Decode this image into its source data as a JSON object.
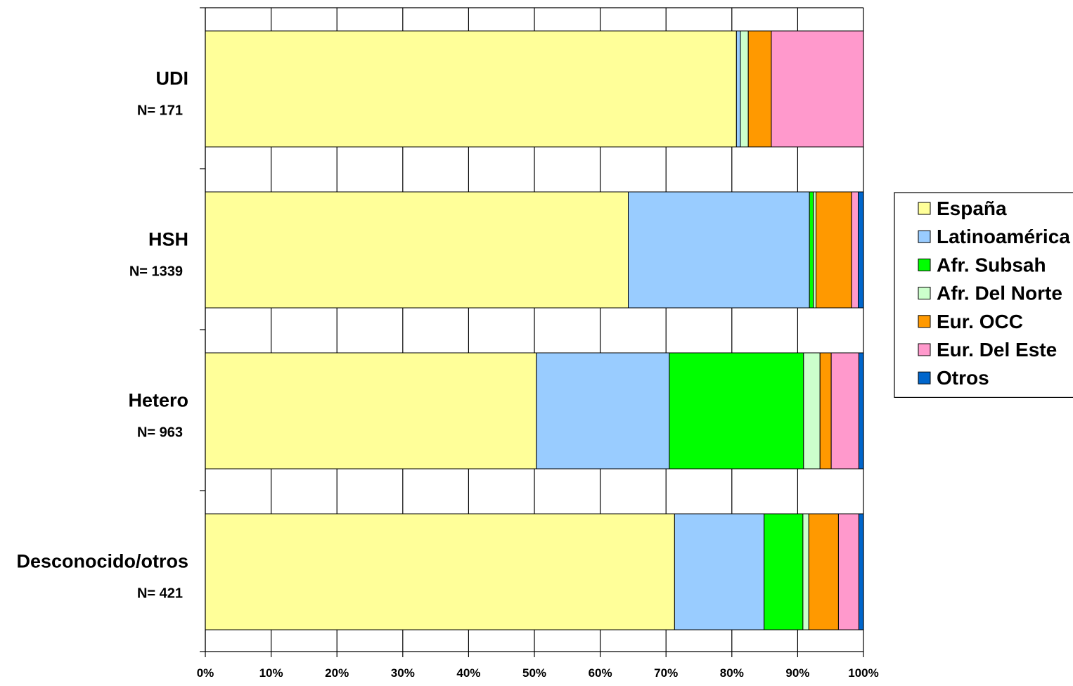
{
  "chart_data": {
    "type": "bar",
    "orientation": "horizontal",
    "stacked": "percent",
    "categories": [
      "UDI",
      "HSH",
      "Hetero",
      "Desconocido/otros"
    ],
    "category_counts": [
      "N= 171",
      "N= 1339",
      "N= 963",
      "N= 421"
    ],
    "series": [
      {
        "name": "España",
        "color": "#FFFF99",
        "values": [
          80.7,
          64.2,
          50.3,
          71.3
        ]
      },
      {
        "name": "Latinoamérica",
        "color": "#99CCFF",
        "values": [
          0.6,
          27.5,
          20.2,
          13.6
        ]
      },
      {
        "name": "Afr. Subsah",
        "color": "#00FF00",
        "values": [
          0.0,
          0.6,
          20.4,
          5.9
        ]
      },
      {
        "name": "Afr. Del Norte",
        "color": "#CCFFCC",
        "values": [
          1.2,
          0.4,
          2.5,
          0.9
        ]
      },
      {
        "name": "Eur. OCC",
        "color": "#FF9900",
        "values": [
          3.5,
          5.4,
          1.7,
          4.5
        ]
      },
      {
        "name": "Eur. Del Este",
        "color": "#FF99CC",
        "values": [
          14.0,
          1.0,
          4.2,
          3.1
        ]
      },
      {
        "name": "Otros",
        "color": "#0066CC",
        "values": [
          0.0,
          0.8,
          0.7,
          0.7
        ]
      }
    ],
    "x_ticks": [
      "0%",
      "10%",
      "20%",
      "30%",
      "40%",
      "50%",
      "60%",
      "70%",
      "80%",
      "90%",
      "100%"
    ],
    "xlim": [
      0,
      100
    ],
    "grid": true,
    "legend_position": "right"
  }
}
